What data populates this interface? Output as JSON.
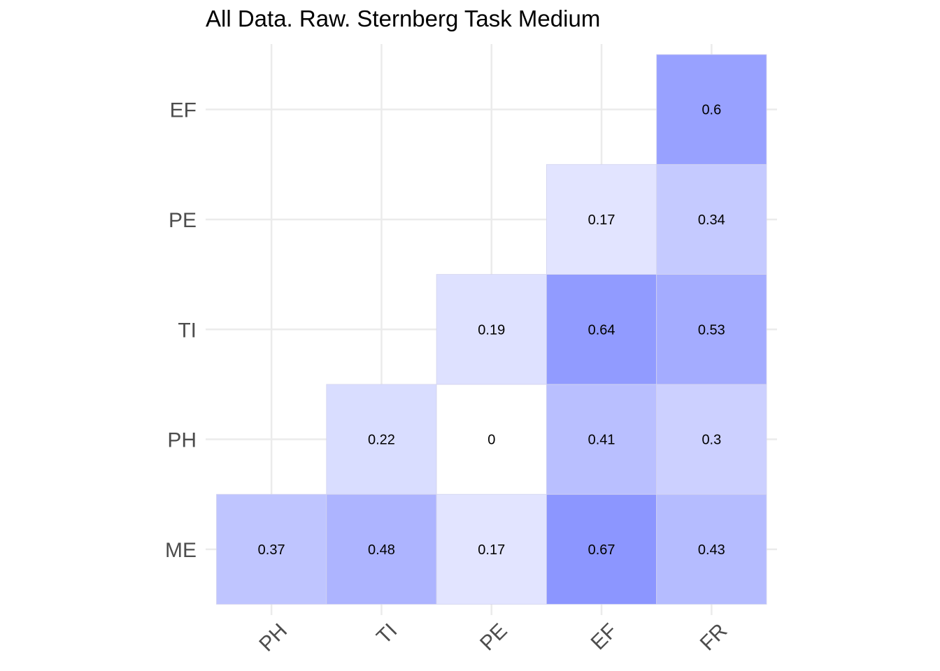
{
  "chart_data": {
    "type": "heatmap",
    "title": "All Data. Raw. Sternberg Task Medium",
    "x_categories": [
      "PH",
      "TI",
      "PE",
      "EF",
      "FR"
    ],
    "y_categories": [
      "ME",
      "PH",
      "TI",
      "PE",
      "EF"
    ],
    "cells": [
      {
        "x": "PH",
        "y": "ME",
        "value": 0.37,
        "label": "0.37"
      },
      {
        "x": "TI",
        "y": "ME",
        "value": 0.48,
        "label": "0.48"
      },
      {
        "x": "PE",
        "y": "ME",
        "value": 0.17,
        "label": "0.17"
      },
      {
        "x": "EF",
        "y": "ME",
        "value": 0.67,
        "label": "0.67"
      },
      {
        "x": "FR",
        "y": "ME",
        "value": 0.43,
        "label": "0.43"
      },
      {
        "x": "TI",
        "y": "PH",
        "value": 0.22,
        "label": "0.22"
      },
      {
        "x": "PE",
        "y": "PH",
        "value": 0,
        "label": "0"
      },
      {
        "x": "EF",
        "y": "PH",
        "value": 0.41,
        "label": "0.41"
      },
      {
        "x": "FR",
        "y": "PH",
        "value": 0.3,
        "label": "0.3"
      },
      {
        "x": "PE",
        "y": "TI",
        "value": 0.19,
        "label": "0.19"
      },
      {
        "x": "EF",
        "y": "TI",
        "value": 0.64,
        "label": "0.64"
      },
      {
        "x": "FR",
        "y": "TI",
        "value": 0.53,
        "label": "0.53"
      },
      {
        "x": "EF",
        "y": "PE",
        "value": 0.17,
        "label": "0.17"
      },
      {
        "x": "FR",
        "y": "PE",
        "value": 0.34,
        "label": "0.34"
      },
      {
        "x": "FR",
        "y": "EF",
        "value": 0.6,
        "label": "0.6"
      }
    ],
    "color_low": "#ffffff",
    "color_high": "#8c96ff",
    "grid": true,
    "legend": "none"
  }
}
